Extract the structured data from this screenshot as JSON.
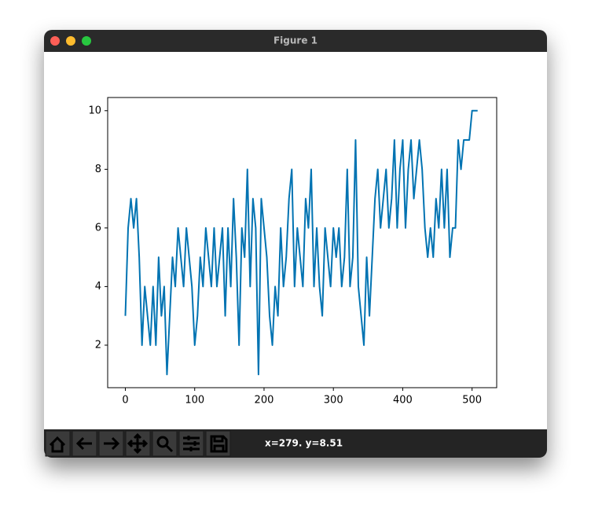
{
  "window": {
    "title": "Figure 1",
    "status": "x=279. y=8.51"
  },
  "chart_data": {
    "type": "line",
    "x": [
      0,
      4,
      8,
      12,
      16,
      20,
      24,
      28,
      32,
      36,
      40,
      44,
      48,
      52,
      56,
      60,
      64,
      68,
      72,
      76,
      80,
      84,
      88,
      92,
      96,
      100,
      104,
      108,
      112,
      116,
      120,
      124,
      128,
      132,
      136,
      140,
      144,
      148,
      152,
      156,
      160,
      164,
      168,
      172,
      176,
      180,
      184,
      188,
      192,
      196,
      200,
      204,
      208,
      212,
      216,
      220,
      224,
      228,
      232,
      236,
      240,
      244,
      248,
      252,
      256,
      260,
      264,
      268,
      272,
      276,
      280,
      284,
      288,
      292,
      296,
      300,
      304,
      308,
      312,
      316,
      320,
      324,
      328,
      332,
      336,
      340,
      344,
      348,
      352,
      356,
      360,
      364,
      368,
      372,
      376,
      380,
      384,
      388,
      392,
      396,
      400,
      404,
      408,
      412,
      416,
      420,
      424,
      428,
      432,
      436,
      440,
      444,
      448,
      452,
      456,
      460,
      464,
      468,
      472,
      476,
      480,
      484,
      488,
      492,
      496,
      500,
      504,
      508
    ],
    "series": [
      {
        "color": "#0173b2",
        "values": [
          3,
          6,
          7,
          6,
          7,
          5,
          2,
          4,
          3,
          2,
          4,
          2,
          5,
          3,
          4,
          1,
          3,
          5,
          4,
          6,
          5,
          4,
          6,
          5,
          4,
          2,
          3,
          5,
          4,
          6,
          5,
          4,
          6,
          4,
          5,
          6,
          3,
          6,
          4,
          7,
          5,
          2,
          6,
          5,
          8,
          4,
          7,
          6,
          1,
          7,
          6,
          5,
          3,
          2,
          4,
          3,
          6,
          4,
          5,
          7,
          8,
          4,
          6,
          5,
          4,
          7,
          6,
          8,
          4,
          6,
          4,
          3,
          6,
          5,
          4,
          6,
          5,
          6,
          4,
          5,
          8,
          4,
          5,
          9,
          4,
          3,
          2,
          5,
          3,
          5,
          7,
          8,
          6,
          7,
          8,
          6,
          7,
          9,
          6,
          8,
          9,
          6,
          8,
          9,
          7,
          8,
          9,
          8,
          6,
          5,
          6,
          5,
          7,
          6,
          8,
          6,
          8,
          5,
          6,
          6,
          9,
          8,
          9,
          9,
          9,
          10,
          10,
          10
        ]
      }
    ],
    "xlim": [
      -25.5,
      535.5
    ],
    "ylim": [
      0.55,
      10.45
    ],
    "xticks": [
      0,
      100,
      200,
      300,
      400,
      500
    ],
    "yticks": [
      2,
      4,
      6,
      8,
      10
    ]
  }
}
